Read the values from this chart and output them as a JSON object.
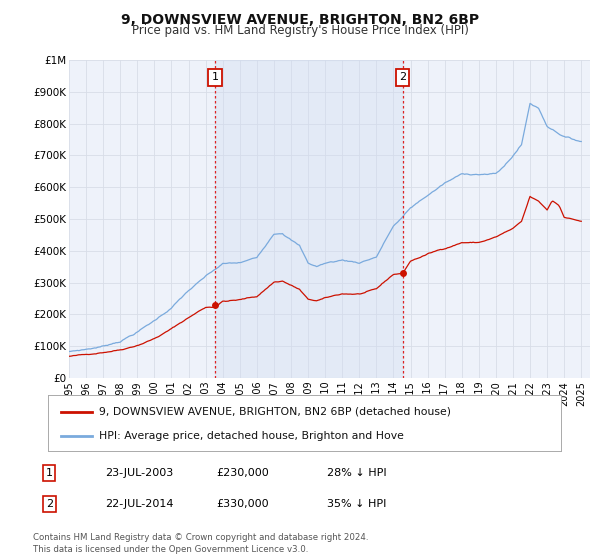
{
  "title": "9, DOWNSVIEW AVENUE, BRIGHTON, BN2 6BP",
  "subtitle": "Price paid vs. HM Land Registry's House Price Index (HPI)",
  "bg_color": "#ffffff",
  "plot_bg_color": "#eef2fa",
  "grid_color": "#d8dde8",
  "hpi_color": "#7aaadd",
  "sale_color": "#cc1100",
  "shade_color": "#d0dcf0",
  "ylim": [
    0,
    1000000
  ],
  "yticks": [
    0,
    100000,
    200000,
    300000,
    400000,
    500000,
    600000,
    700000,
    800000,
    900000,
    1000000
  ],
  "ytick_labels": [
    "£0",
    "£100K",
    "£200K",
    "£300K",
    "£400K",
    "£500K",
    "£600K",
    "£700K",
    "£800K",
    "£900K",
    "£1M"
  ],
  "xmin": 1995.0,
  "xmax": 2025.5,
  "sale1_x": 2003.55,
  "sale1_y": 230000,
  "sale1_label": "1",
  "sale1_date": "23-JUL-2003",
  "sale1_price": "£230,000",
  "sale1_hpi": "28% ↓ HPI",
  "sale2_x": 2014.55,
  "sale2_y": 330000,
  "sale2_label": "2",
  "sale2_date": "22-JUL-2014",
  "sale2_price": "£330,000",
  "sale2_hpi": "35% ↓ HPI",
  "legend_sale_label": "9, DOWNSVIEW AVENUE, BRIGHTON, BN2 6BP (detached house)",
  "legend_hpi_label": "HPI: Average price, detached house, Brighton and Hove",
  "footnote": "Contains HM Land Registry data © Crown copyright and database right 2024.\nThis data is licensed under the Open Government Licence v3.0.",
  "xticks": [
    1995,
    1996,
    1997,
    1998,
    1999,
    2000,
    2001,
    2002,
    2003,
    2004,
    2005,
    2006,
    2007,
    2008,
    2009,
    2010,
    2011,
    2012,
    2013,
    2014,
    2015,
    2016,
    2017,
    2018,
    2019,
    2020,
    2021,
    2022,
    2023,
    2024,
    2025
  ]
}
